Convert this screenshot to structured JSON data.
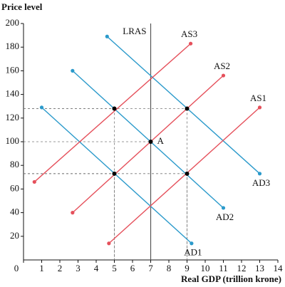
{
  "chart_data": {
    "type": "line",
    "y_label": "Price level",
    "x_label": "Real GDP (trillion krone)",
    "xlim": [
      0,
      14
    ],
    "xticks": [
      0,
      1,
      2,
      3,
      4,
      5,
      6,
      7,
      8,
      9,
      10,
      11,
      12,
      13,
      14
    ],
    "ylim": [
      0,
      200
    ],
    "yticks": [
      20,
      40,
      60,
      80,
      100,
      120,
      140,
      160,
      180,
      200
    ],
    "grid": false,
    "series": [
      {
        "name": "LRAS",
        "color": "#555555",
        "x": [
          7,
          7
        ],
        "values": [
          0,
          200
        ]
      },
      {
        "name": "AD1",
        "color": "#2b9acb",
        "x": [
          1,
          9.25
        ],
        "values": [
          129,
          14
        ]
      },
      {
        "name": "AD2",
        "color": "#2b9acb",
        "x": [
          2.7,
          11
        ],
        "values": [
          160,
          44
        ]
      },
      {
        "name": "AD3",
        "color": "#2b9acb",
        "x": [
          4.6,
          13
        ],
        "values": [
          189,
          73
        ]
      },
      {
        "name": "AS1",
        "color": "#e5505b",
        "x": [
          4.7,
          13
        ],
        "values": [
          14,
          129
        ]
      },
      {
        "name": "AS2",
        "color": "#e5505b",
        "x": [
          2.7,
          11
        ],
        "values": [
          40,
          156
        ]
      },
      {
        "name": "AS3",
        "color": "#e5505b",
        "x": [
          0.6,
          9.2
        ],
        "values": [
          66,
          183
        ]
      }
    ],
    "points": {
      "color": "#000000",
      "x": [
        5,
        9,
        7,
        5,
        9
      ],
      "values": [
        128,
        128,
        100,
        73,
        73
      ]
    },
    "annotations": [
      {
        "text": "A",
        "x": 7,
        "y": 100
      }
    ]
  }
}
